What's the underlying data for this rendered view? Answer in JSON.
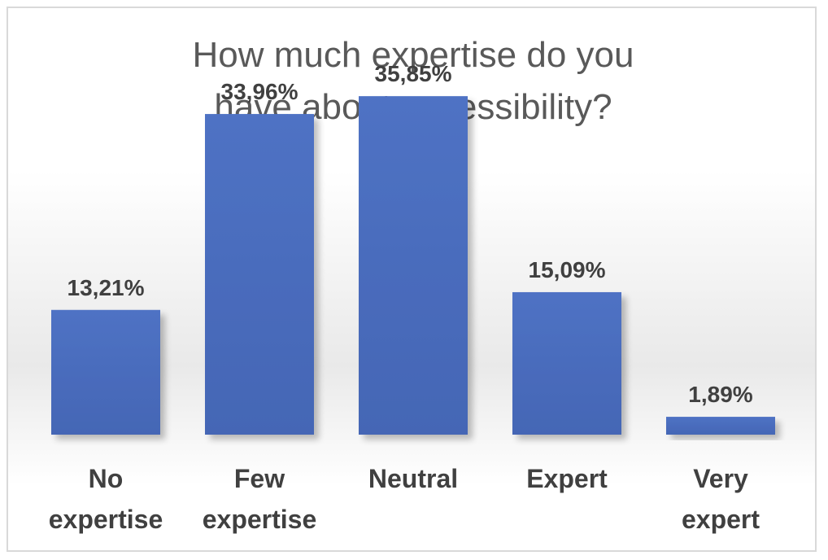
{
  "chart_data": {
    "type": "bar",
    "title_lines": [
      "How much expertise do you",
      "have about accessibility?"
    ],
    "categories": [
      [
        "No",
        "expertise"
      ],
      [
        "Few",
        "expertise"
      ],
      [
        "Neutral"
      ],
      [
        "Expert"
      ],
      [
        "Very",
        "expert"
      ]
    ],
    "values": [
      13.21,
      33.96,
      35.85,
      15.09,
      1.89
    ],
    "data_labels": [
      "13,21%",
      "33,96%",
      "35,85%",
      "15,09%",
      "1,89%"
    ],
    "ylim": [
      0,
      40
    ],
    "grid": false,
    "legend": "none",
    "colors": {
      "bar": "#4f72c4",
      "bar_dark": "#4466b5",
      "title": "#595959",
      "labels": "#404040"
    }
  }
}
